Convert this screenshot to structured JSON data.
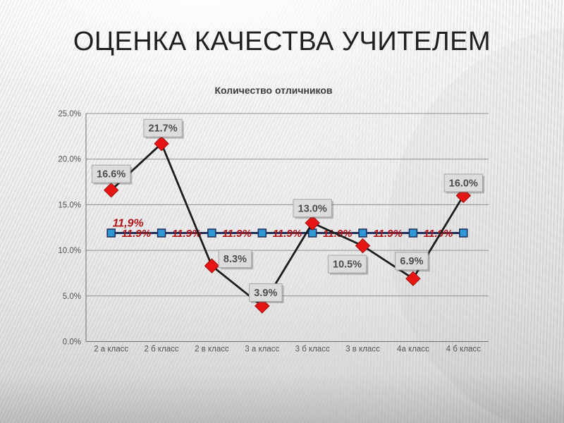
{
  "slide": {
    "title": "ОЦЕНКА КАЧЕСТВА УЧИТЕЛЕМ"
  },
  "chart_data": {
    "type": "line",
    "title": "Количество отличников",
    "categories": [
      "2 а класс",
      "2 б класс",
      "2 в класс",
      "3 а класс",
      "3 б класс",
      "3 в класс",
      "4а класс",
      "4 б класс"
    ],
    "series": [
      {
        "values": [
          16.6,
          21.7,
          8.3,
          3.9,
          13.0,
          10.5,
          6.9,
          16.0
        ],
        "point_labels": [
          "16.6%",
          "21.7%",
          "8.3%",
          "3.9%",
          "13.0%",
          "10.5%",
          "6.9%",
          "16.0%"
        ],
        "marker": "diamond",
        "line_color": "#1c1c1c",
        "marker_fill": "#e81515",
        "marker_stroke": "#9b0d0d",
        "label_box_fill": "#dcdcdc",
        "label_box_stroke": "#a6a6a6",
        "label_text_color": "#4d4d4d",
        "label_offsets": [
          [
            0,
            -23
          ],
          [
            2,
            -22
          ],
          [
            33,
            -10
          ],
          [
            5,
            -19
          ],
          [
            0,
            -21
          ],
          [
            -22,
            26
          ],
          [
            -2,
            -25
          ],
          [
            0,
            -18
          ]
        ]
      },
      {
        "values": [
          11.9,
          11.9,
          11.9,
          11.9,
          11.9,
          11.9,
          11.9,
          11.9
        ],
        "between_labels": [
          "11.9%",
          "11.9%",
          "11.9%",
          "11.9%",
          "11.9%",
          "11.9%",
          "11.9%"
        ],
        "callout_label": "11,9%",
        "callout_offset": [
          24,
          -14
        ],
        "marker": "square",
        "line_color": "#1e2f5c",
        "marker_fill": "#2d97d3",
        "marker_stroke": "#1e2f5c",
        "label_text_color": "#b01216"
      }
    ],
    "ylim": [
      0,
      25
    ],
    "yticks": [
      {
        "value": 0,
        "label": "0.0%"
      },
      {
        "value": 5,
        "label": "5.0%"
      },
      {
        "value": 10,
        "label": "10.0%"
      },
      {
        "value": 15,
        "label": "15.0%"
      },
      {
        "value": 20,
        "label": "20.0%"
      },
      {
        "value": 25,
        "label": "25.0%"
      }
    ],
    "grid": true,
    "legend": "none",
    "axis_text_color": "#545454",
    "grid_color": "#8f8f8f",
    "axis_line_color": "#6e6e6e"
  }
}
